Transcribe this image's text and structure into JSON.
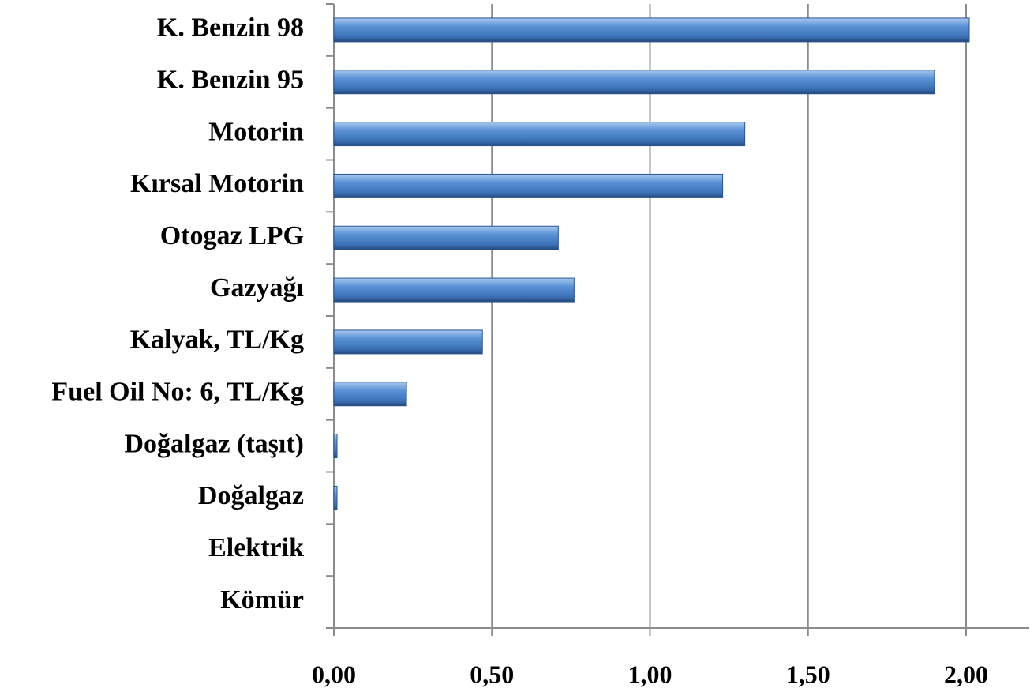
{
  "chart_data": {
    "type": "barh",
    "categories": [
      "K. Benzin 98",
      "K. Benzin 95",
      "Motorin",
      "Kırsal Motorin",
      "Otogaz LPG",
      "Gazyağı",
      "Kalyak, TL/Kg",
      "Fuel Oil No: 6, TL/Kg",
      "Doğalgaz (taşıt)",
      "Doğalgaz",
      "Elektrik",
      "Kömür"
    ],
    "values": [
      2.01,
      1.9,
      1.3,
      1.23,
      0.71,
      0.76,
      0.47,
      0.23,
      0.01,
      0.01,
      0,
      0
    ],
    "color": "#4f86c9",
    "xlim": [
      0,
      2.2
    ],
    "xticks": [
      {
        "value": 0,
        "label": "0,00"
      },
      {
        "value": 0.5,
        "label": "0,50"
      },
      {
        "value": 1,
        "label": "1,00"
      },
      {
        "value": 1.5,
        "label": "1,50"
      },
      {
        "value": 2,
        "label": "2,00"
      }
    ],
    "grid": true
  }
}
